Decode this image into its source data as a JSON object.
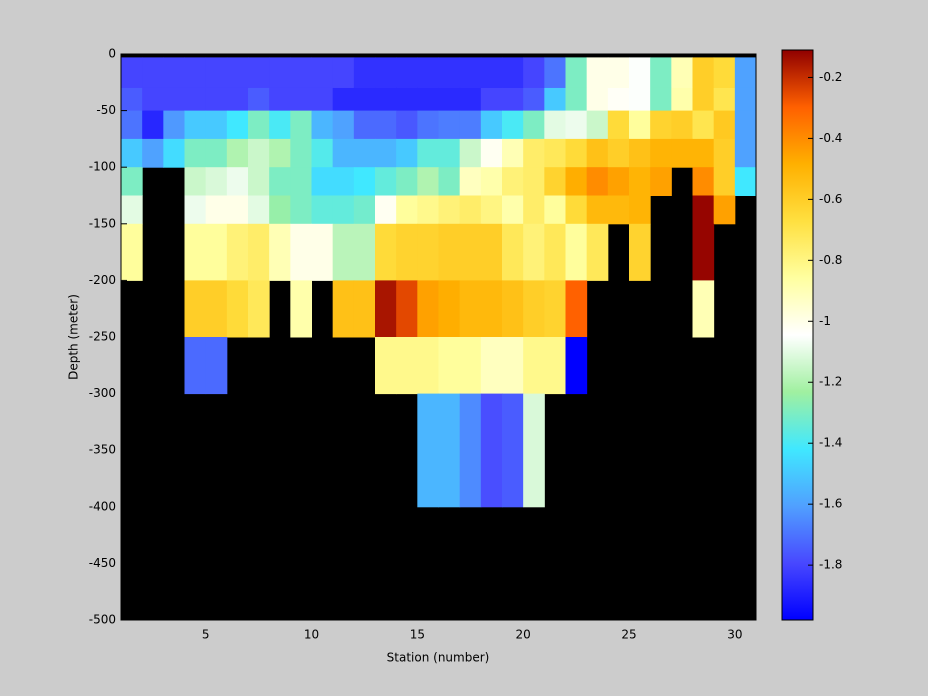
{
  "chart_data": {
    "type": "heatmap",
    "xlabel": "Station (number)",
    "ylabel": "Depth (meter)",
    "x": [
      1,
      2,
      3,
      4,
      5,
      6,
      7,
      8,
      9,
      10,
      11,
      12,
      13,
      14,
      15,
      16,
      17,
      18,
      19,
      20,
      21,
      22,
      23,
      24,
      25,
      26,
      27,
      28,
      29,
      30,
      31
    ],
    "y": [
      -3,
      -30,
      -50,
      -75,
      -100,
      -125,
      -150,
      -200,
      -250,
      -300,
      -400,
      -500
    ],
    "values": [
      [
        -1.8,
        -1.8,
        -1.8,
        -1.8,
        -1.8,
        -1.8,
        -1.8,
        -1.8,
        -1.8,
        -1.8,
        -1.8,
        -1.85,
        -1.85,
        -1.85,
        -1.85,
        -1.85,
        -1.85,
        -1.85,
        -1.85,
        -1.8,
        -1.7,
        -1.3,
        -1.0,
        -1.0,
        -1.05,
        -1.3,
        -0.9,
        -0.6,
        -0.65,
        -1.6
      ],
      [
        -1.75,
        -1.8,
        -1.8,
        -1.8,
        -1.8,
        -1.8,
        -1.75,
        -1.8,
        -1.8,
        -1.8,
        -1.87,
        -1.87,
        -1.87,
        -1.87,
        -1.87,
        -1.87,
        -1.87,
        -1.8,
        -1.8,
        -1.75,
        -1.5,
        -1.3,
        -1.0,
        -1.03,
        -1.05,
        -1.3,
        -0.88,
        -0.6,
        -0.7,
        -1.6
      ],
      [
        -1.7,
        -1.88,
        -1.62,
        -1.5,
        -1.5,
        -1.42,
        -1.3,
        -1.4,
        -1.3,
        -1.55,
        -1.6,
        -1.72,
        -1.72,
        -1.76,
        -1.7,
        -1.68,
        -1.68,
        -1.5,
        -1.4,
        -1.3,
        -1.1,
        -1.08,
        -1.15,
        -0.65,
        -0.85,
        -0.62,
        -0.6,
        -0.7,
        -0.58,
        -1.6
      ],
      [
        -1.5,
        -1.6,
        -1.45,
        -1.3,
        -1.3,
        -1.2,
        -1.15,
        -1.2,
        -1.3,
        -1.38,
        -1.55,
        -1.55,
        -1.55,
        -1.5,
        -1.35,
        -1.35,
        -1.15,
        -1.02,
        -0.9,
        -0.75,
        -0.72,
        -0.65,
        -0.55,
        -0.6,
        -0.55,
        -0.5,
        -0.5,
        -0.5,
        -0.6,
        -1.6
      ],
      [
        -1.3,
        null,
        null,
        -1.15,
        -1.12,
        -1.08,
        -1.15,
        -1.3,
        -1.3,
        -1.45,
        -1.45,
        -1.42,
        -1.35,
        -1.3,
        -1.2,
        -1.3,
        -0.92,
        -0.88,
        -0.78,
        -0.75,
        -0.62,
        -0.48,
        -0.4,
        -0.45,
        -0.5,
        -0.45,
        null,
        -0.4,
        -0.6,
        -1.42
      ],
      [
        -1.1,
        null,
        null,
        -1.08,
        -1.0,
        -1.0,
        -1.1,
        -1.25,
        -1.3,
        -1.35,
        -1.35,
        -1.32,
        -1.02,
        -0.85,
        -0.82,
        -0.78,
        -0.75,
        -0.8,
        -0.88,
        -0.75,
        -0.85,
        -0.65,
        -0.52,
        -0.52,
        -0.5,
        null,
        null,
        -0.12,
        -0.45,
        null
      ],
      [
        -0.85,
        null,
        null,
        -0.85,
        -0.85,
        -0.78,
        -0.75,
        -0.9,
        -1.0,
        -1.0,
        -1.18,
        -1.18,
        -0.65,
        -0.62,
        -0.62,
        -0.6,
        -0.6,
        -0.6,
        -0.72,
        -0.78,
        -0.72,
        -0.85,
        -0.72,
        null,
        -0.62,
        null,
        null,
        -0.12,
        null,
        null
      ],
      [
        null,
        null,
        null,
        -0.6,
        -0.6,
        -0.65,
        -0.72,
        null,
        -0.88,
        null,
        -0.55,
        -0.55,
        -0.15,
        -0.25,
        -0.45,
        -0.48,
        -0.52,
        -0.52,
        -0.55,
        -0.6,
        -0.62,
        -0.3,
        null,
        null,
        null,
        null,
        null,
        -0.9,
        null,
        null
      ],
      [
        null,
        null,
        null,
        -1.72,
        -1.72,
        null,
        null,
        null,
        null,
        null,
        null,
        null,
        -0.82,
        -0.82,
        -0.82,
        -0.85,
        -0.85,
        -0.92,
        -0.92,
        -0.82,
        -0.82,
        -1.98,
        null,
        null,
        null,
        null,
        null,
        null,
        null,
        null
      ],
      [
        null,
        null,
        null,
        null,
        null,
        null,
        null,
        null,
        null,
        null,
        null,
        null,
        null,
        null,
        -1.55,
        -1.55,
        -1.65,
        -1.78,
        -1.75,
        -1.12,
        null,
        null,
        null,
        null,
        null,
        null,
        null,
        null,
        null,
        null
      ],
      [
        null,
        null,
        null,
        null,
        null,
        null,
        null,
        null,
        null,
        null,
        null,
        null,
        null,
        null,
        null,
        null,
        null,
        null,
        null,
        null,
        null,
        null,
        null,
        null,
        null,
        null,
        null,
        null,
        null,
        null
      ]
    ],
    "xlim": [
      1,
      31
    ],
    "xticks": [
      5,
      10,
      15,
      20,
      25,
      30
    ],
    "ylim": [
      -500,
      0
    ],
    "yticks": [
      0,
      -50,
      -100,
      -150,
      -200,
      -250,
      -300,
      -350,
      -400,
      -450,
      -500
    ],
    "clim": [
      -1.98,
      -0.11
    ],
    "cticks": [
      -1.8,
      -1.6,
      -1.4,
      -1.2,
      -1,
      -0.8,
      -0.6,
      -0.4,
      -0.2
    ],
    "colormap": [
      "#0000ff",
      "#4848ff",
      "#50a0ff",
      "#40e8ff",
      "#a0f0a0",
      "#ffffff",
      "#ffffa0",
      "#ffe040",
      "#ffb000",
      "#ff6000",
      "#900000"
    ],
    "missing_color": "#000000"
  }
}
